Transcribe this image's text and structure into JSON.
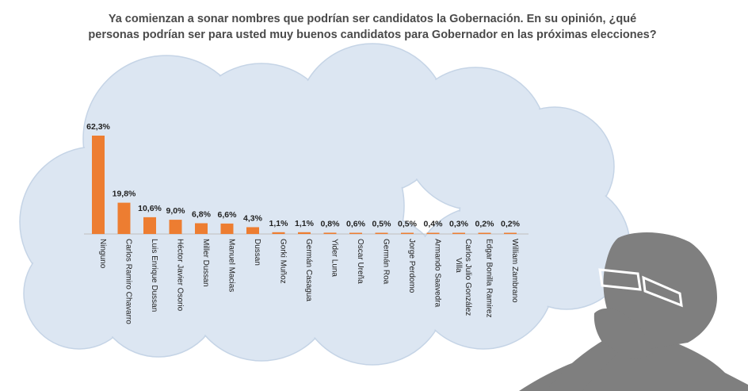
{
  "title": "Ya comienzan a sonar nombres que podrían ser candidatos la Gobernación.  En su opinión, ¿qué personas podrían ser para usted muy buenos candidatos para Gobernador  en las próximas elecciones?",
  "colors": {
    "bar": "#ED7D31",
    "cloud": "#DCE6F2",
    "cloud_stroke": "#C5D4E6",
    "figure": "#7F7F7F"
  },
  "chart_data": {
    "type": "bar",
    "title": "Ya comienzan a sonar nombres que podrían ser candidatos la Gobernación.  En su opinión, ¿qué personas podrían ser para usted muy buenos candidatos para Gobernador  en las próximas elecciones?",
    "categories": [
      "Ninguno",
      "Carlos Ramiro Chavarro",
      "Luis Enrique Dussan",
      "Héctor Javier Osorio",
      "Miller Dussan",
      "Manuel Macias",
      "Dussan",
      "Gorki Muñoz",
      "Germán Casagua",
      "Yider Luna",
      "Oscar Ureña",
      "Germán Roa",
      "Jorge Perdomo",
      "Armando Saavedra",
      "Carlos Julio González Villa",
      "Edgar Bonilla Ramirez",
      "William Zambrano"
    ],
    "values": [
      62.3,
      19.8,
      10.6,
      9.0,
      6.8,
      6.6,
      4.3,
      1.1,
      1.1,
      0.8,
      0.6,
      0.5,
      0.5,
      0.4,
      0.3,
      0.2,
      0.2
    ],
    "data_labels": [
      "62,3%",
      "19,8%",
      "10,6%",
      "9,0%",
      "6,8%",
      "6,6%",
      "4,3%",
      "1,1%",
      "1,1%",
      "0,8%",
      "0,6%",
      "0,5%",
      "0,5%",
      "0,4%",
      "0,3%",
      "0,2%",
      "0,2%"
    ],
    "xlabel": "",
    "ylabel": "",
    "ylim": [
      0,
      62.3
    ],
    "grid": false,
    "legend": "none"
  }
}
